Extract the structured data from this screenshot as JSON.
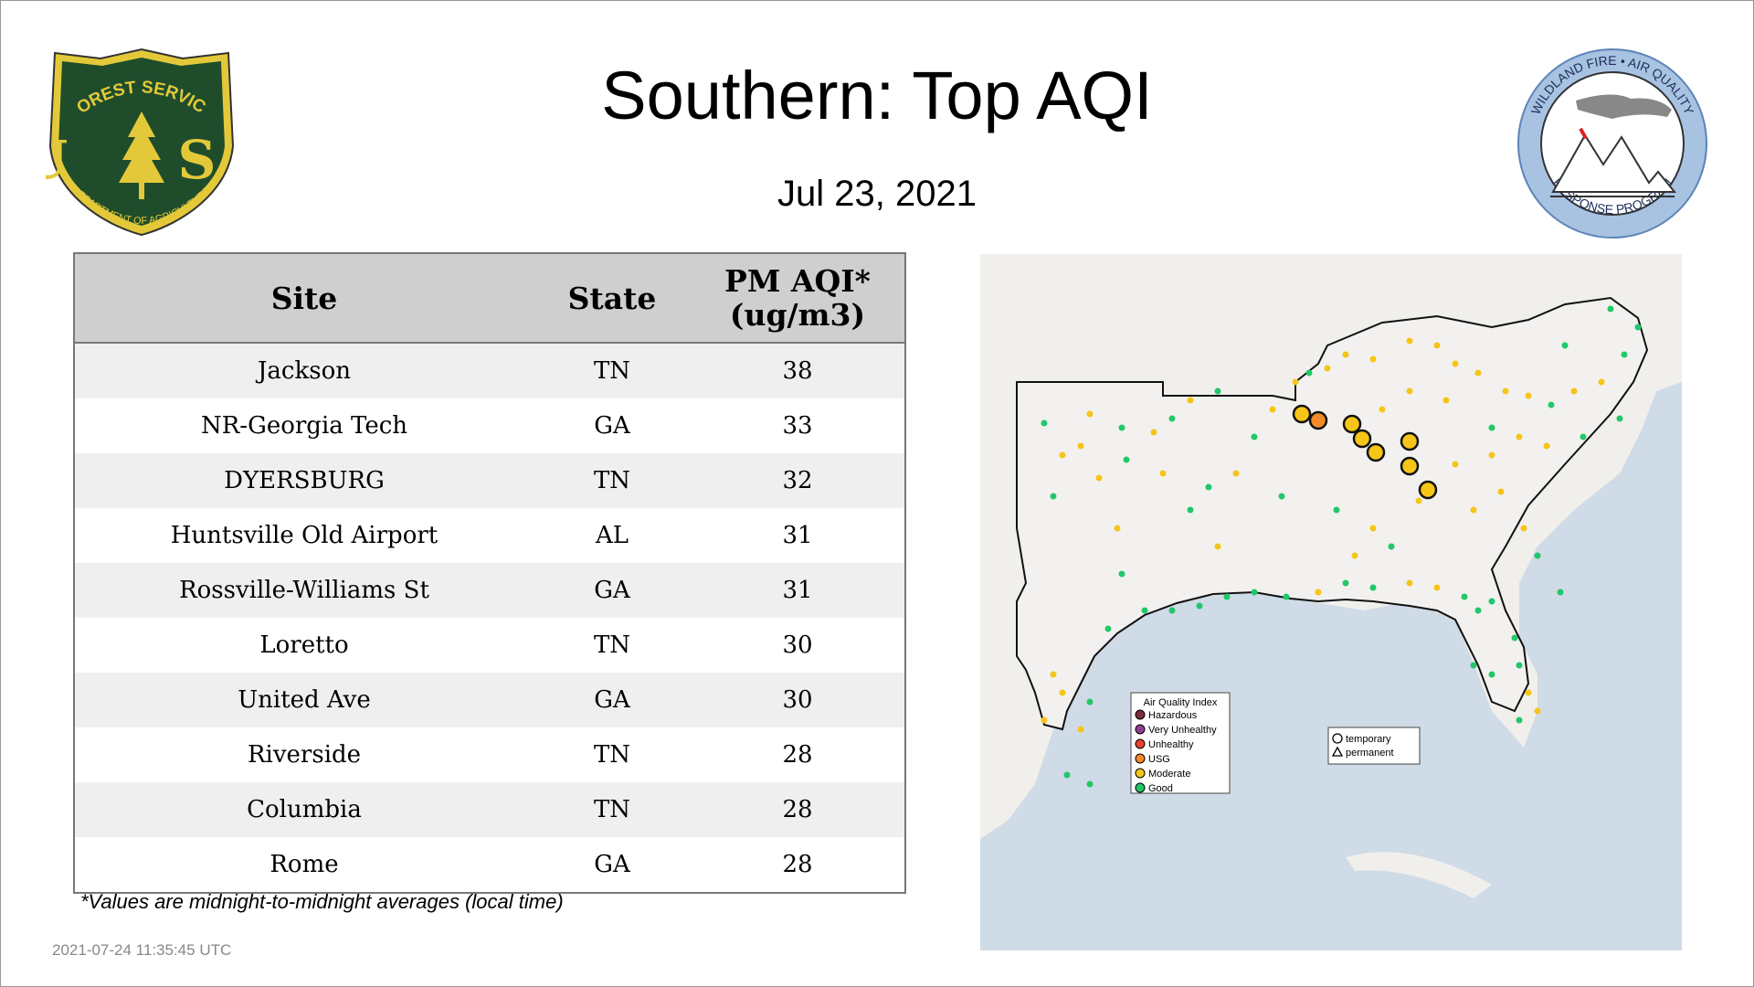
{
  "title": "Southern: Top AQI",
  "date": "Jul 23, 2021",
  "logos": {
    "forest_service": {
      "top": "FOREST SERVICE",
      "letters": "U S",
      "bottom": "DEPARTMENT OF AGRICULTURE"
    },
    "wildland": {
      "ring_top": "WILDLAND FIRE • AIR QUALITY",
      "ring_bottom": "RESPONSE PROGRAM"
    }
  },
  "table": {
    "headers": {
      "site": "Site",
      "state": "State",
      "aqi_line1": "PM AQI*",
      "aqi_line2": "(ug/m3)"
    },
    "rows": [
      {
        "site": "Jackson",
        "state": "TN",
        "aqi": "38"
      },
      {
        "site": "NR-Georgia Tech",
        "state": "GA",
        "aqi": "33"
      },
      {
        "site": "DYERSBURG",
        "state": "TN",
        "aqi": "32"
      },
      {
        "site": "Huntsville Old Airport",
        "state": "AL",
        "aqi": "31"
      },
      {
        "site": "Rossville-Williams St",
        "state": "GA",
        "aqi": "31"
      },
      {
        "site": "Loretto",
        "state": "TN",
        "aqi": "30"
      },
      {
        "site": "United Ave",
        "state": "GA",
        "aqi": "30"
      },
      {
        "site": "Riverside",
        "state": "TN",
        "aqi": "28"
      },
      {
        "site": "Columbia",
        "state": "TN",
        "aqi": "28"
      },
      {
        "site": "Rome",
        "state": "GA",
        "aqi": "28"
      }
    ]
  },
  "footnote": "*Values are midnight-to-midnight averages (local time)",
  "timestamp": "2021-07-24 11:35:45 UTC",
  "map": {
    "legend_title": "Air Quality Index",
    "legend_items": [
      {
        "label": "Hazardous",
        "color": "#7e2c3b"
      },
      {
        "label": "Very Unhealthy",
        "color": "#8f3f97"
      },
      {
        "label": "Unhealthy",
        "color": "#e8412f"
      },
      {
        "label": "USG",
        "color": "#f28a2a"
      },
      {
        "label": "Moderate",
        "color": "#f5c518"
      },
      {
        "label": "Good",
        "color": "#22c76a"
      }
    ],
    "marker_types": {
      "temporary": "temporary",
      "permanent": "permanent"
    },
    "colors": {
      "water": "#cfdbe6",
      "land": "#f1efec",
      "region": "#f3f1ef",
      "moderate": "#f5c518",
      "good": "#22c76a",
      "usg": "#f28a2a"
    }
  }
}
